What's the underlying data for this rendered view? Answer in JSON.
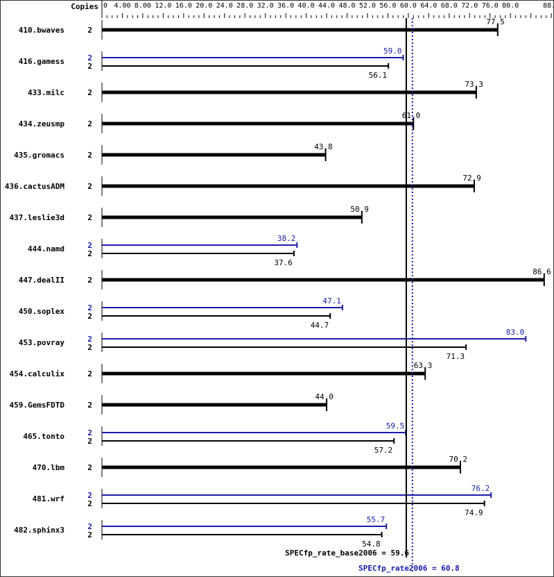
{
  "chart_data": {
    "type": "bar",
    "orientation": "horizontal",
    "copies_label": "Copies",
    "xlim": [
      0,
      88
    ],
    "tick_labels": [
      "0",
      "4.00",
      "8.00",
      "12.0",
      "16.0",
      "20.0",
      "24.0",
      "28.0",
      "32.0",
      "36.0",
      "40.0",
      "44.0",
      "48.0",
      "52.0",
      "56.0",
      "60.0",
      "64.0",
      "68.0",
      "72.0",
      "76.0",
      "80.0",
      "88.0"
    ],
    "tick_values": [
      0,
      4,
      8,
      12,
      16,
      20,
      24,
      28,
      32,
      36,
      40,
      44,
      48,
      52,
      56,
      60,
      64,
      68,
      72,
      76,
      80,
      88
    ],
    "benchmarks": [
      {
        "name": "410.bwaves",
        "base_copies": "2",
        "base": 77.5
      },
      {
        "name": "416.gamess",
        "peak_copies": "2",
        "peak": 59.0,
        "base_copies": "2",
        "base": 56.1
      },
      {
        "name": "433.milc",
        "base_copies": "2",
        "base": 73.3
      },
      {
        "name": "434.zeusmp",
        "base_copies": "2",
        "base": 61.0
      },
      {
        "name": "435.gromacs",
        "base_copies": "2",
        "base": 43.8
      },
      {
        "name": "436.cactusADM",
        "base_copies": "2",
        "base": 72.9
      },
      {
        "name": "437.leslie3d",
        "base_copies": "2",
        "base": 50.9
      },
      {
        "name": "444.namd",
        "peak_copies": "2",
        "peak": 38.2,
        "base_copies": "2",
        "base": 37.6
      },
      {
        "name": "447.dealII",
        "base_copies": "2",
        "base": 86.6
      },
      {
        "name": "450.soplex",
        "peak_copies": "2",
        "peak": 47.1,
        "base_copies": "2",
        "base": 44.7
      },
      {
        "name": "453.povray",
        "peak_copies": "2",
        "peak": 83.0,
        "base_copies": "2",
        "base": 71.3
      },
      {
        "name": "454.calculix",
        "base_copies": "2",
        "base": 63.3
      },
      {
        "name": "459.GemsFDTD",
        "base_copies": "2",
        "base": 44.0
      },
      {
        "name": "465.tonto",
        "peak_copies": "2",
        "peak": 59.5,
        "base_copies": "2",
        "base": 57.2
      },
      {
        "name": "470.lbm",
        "base_copies": "2",
        "base": 70.2
      },
      {
        "name": "481.wrf",
        "peak_copies": "2",
        "peak": 76.2,
        "base_copies": "2",
        "base": 74.9
      },
      {
        "name": "482.sphinx3",
        "peak_copies": "2",
        "peak": 55.7,
        "base_copies": "2",
        "base": 54.8
      }
    ],
    "base_metric": {
      "label": "SPECfp_rate_base2006 = 59.6",
      "value": 59.6
    },
    "peak_metric": {
      "label": "SPECfp_rate2006 = 60.8",
      "value": 60.8
    },
    "colors": {
      "base": "#000000",
      "peak": "#1a1aaa"
    }
  }
}
